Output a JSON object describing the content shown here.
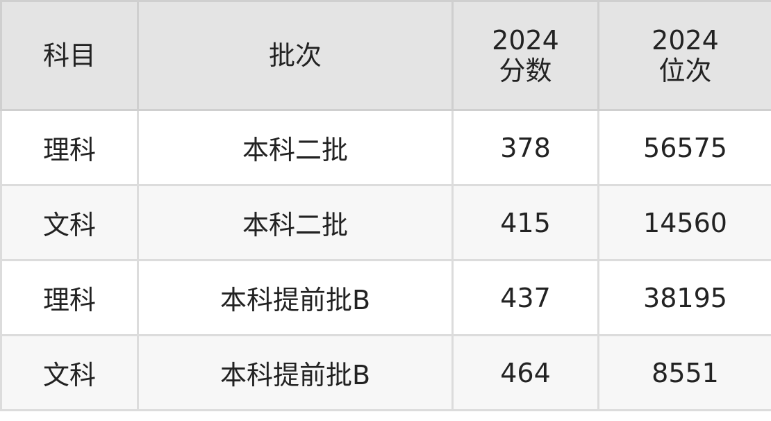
{
  "table": {
    "headers": [
      {
        "line1": "科目",
        "line2": ""
      },
      {
        "line1": "批次",
        "line2": ""
      },
      {
        "line1": "2024",
        "line2": "分数"
      },
      {
        "line1": "2024",
        "line2": "位次"
      }
    ],
    "rows": [
      [
        "理科",
        "本科二批",
        "378",
        "56575"
      ],
      [
        "文科",
        "本科二批",
        "415",
        "14560"
      ],
      [
        "理科",
        "本科提前批B",
        "437",
        "38195"
      ],
      [
        "文科",
        "本科提前批B",
        "464",
        "8551"
      ]
    ]
  }
}
